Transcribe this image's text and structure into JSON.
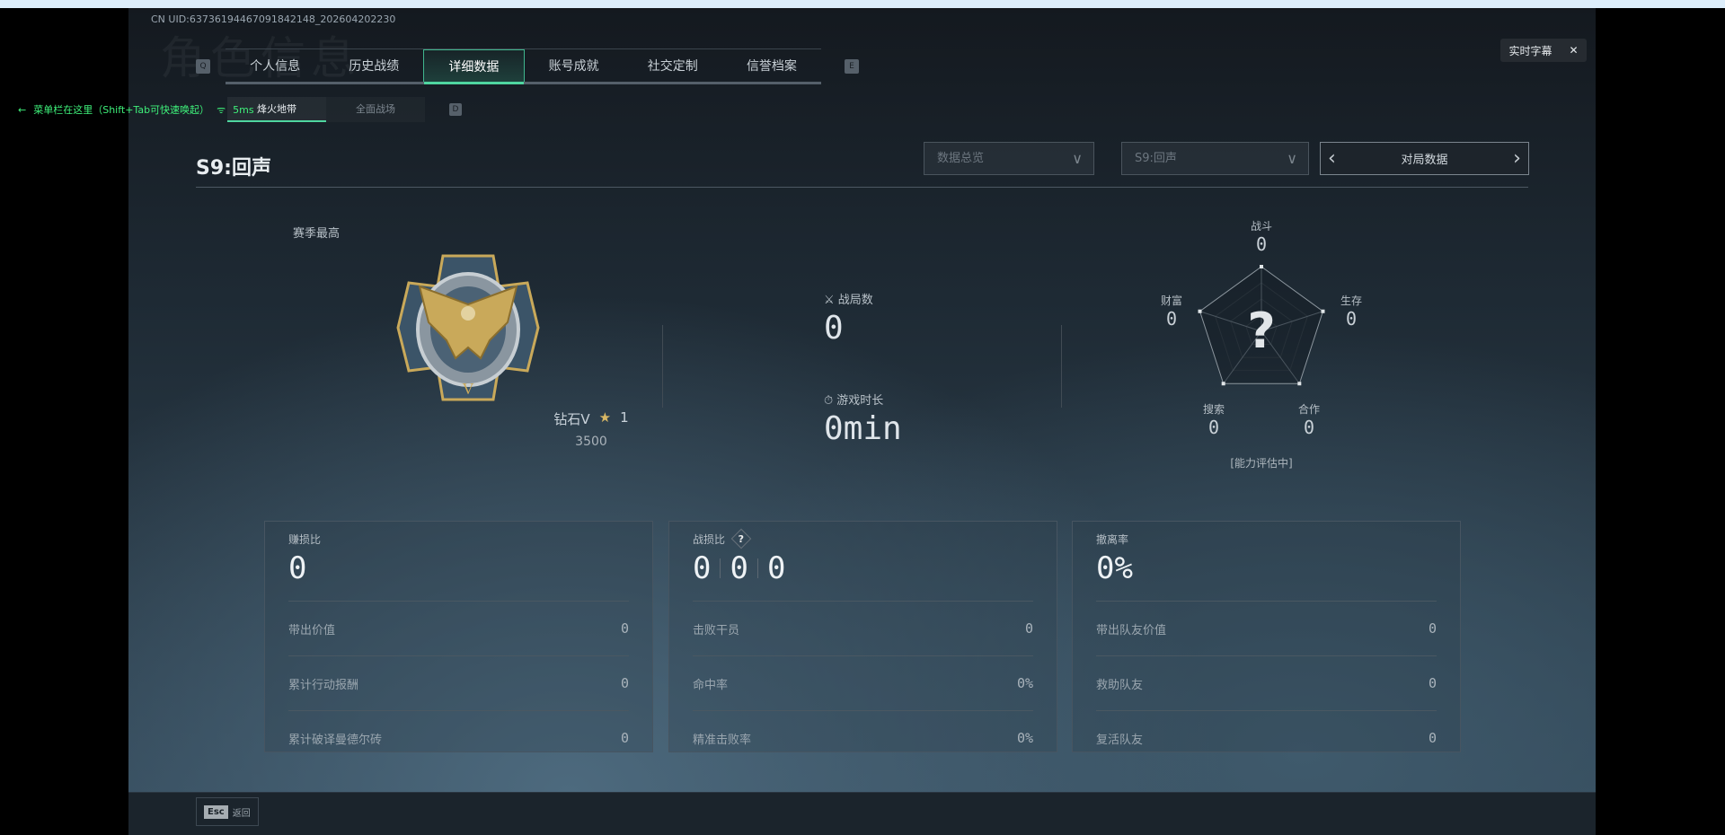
{
  "uid": "CN UID:6373619446709184214​8_202604202230",
  "watermark": "角色信息",
  "overlay": {
    "text": "菜单栏在这里（Shift+Tab可快速唤起）",
    "ping": "5ms"
  },
  "keys": {
    "prev_tab": "Q",
    "next_tab": "E",
    "sub_next": "D"
  },
  "tabs": [
    {
      "label": "个人信息"
    },
    {
      "label": "历史战绩"
    },
    {
      "label": "详细数据",
      "active": true
    },
    {
      "label": "账号成就"
    },
    {
      "label": "社交定制"
    },
    {
      "label": "信誉档案"
    }
  ],
  "subtabs": [
    {
      "label": "烽火地带",
      "active": true
    },
    {
      "label": "全面战场"
    }
  ],
  "caption_button": {
    "label": "实时字幕",
    "close": "✕"
  },
  "season_title": "S9:回声",
  "filters": {
    "overview": "数据总览",
    "season": "S9:回声",
    "mode": "对局数据"
  },
  "rank": {
    "heading": "赛季最高",
    "name": "钻石V",
    "stars": "1",
    "score": "3500",
    "colors": {
      "gold": "#c9a95a",
      "steel": "#4f6b80"
    }
  },
  "summary": {
    "matches_label": "战局数",
    "matches": "0",
    "time_label": "游戏时长",
    "time": "0min"
  },
  "radar": {
    "axes": [
      {
        "label": "战斗",
        "value": "0"
      },
      {
        "label": "生存",
        "value": "0"
      },
      {
        "label": "合作",
        "value": "0"
      },
      {
        "label": "搜索",
        "value": "0"
      },
      {
        "label": "财富",
        "value": "0"
      }
    ],
    "center": "?",
    "status": "[能力评估中]"
  },
  "cards": [
    {
      "title": "赚损比",
      "values": [
        "0"
      ],
      "rows": [
        {
          "label": "带出价值",
          "value": "0"
        },
        {
          "label": "累计行动报酬",
          "value": "0"
        },
        {
          "label": "累计破译曼德尔砖",
          "value": "0"
        }
      ]
    },
    {
      "title": "战损比",
      "help": "?",
      "values": [
        "0",
        "0",
        "0"
      ],
      "rows": [
        {
          "label": "击败干员",
          "value": "0"
        },
        {
          "label": "命中率",
          "value": "0%"
        },
        {
          "label": "精准击败率",
          "value": "0%"
        }
      ]
    },
    {
      "title": "撤离率",
      "values": [
        "0%"
      ],
      "rows": [
        {
          "label": "带出队友价值",
          "value": "0"
        },
        {
          "label": "救助队友",
          "value": "0"
        },
        {
          "label": "复活队友",
          "value": "0"
        }
      ]
    }
  ],
  "footer": {
    "key": "Esc",
    "label": "返回"
  },
  "accent": "#4fd6a0"
}
